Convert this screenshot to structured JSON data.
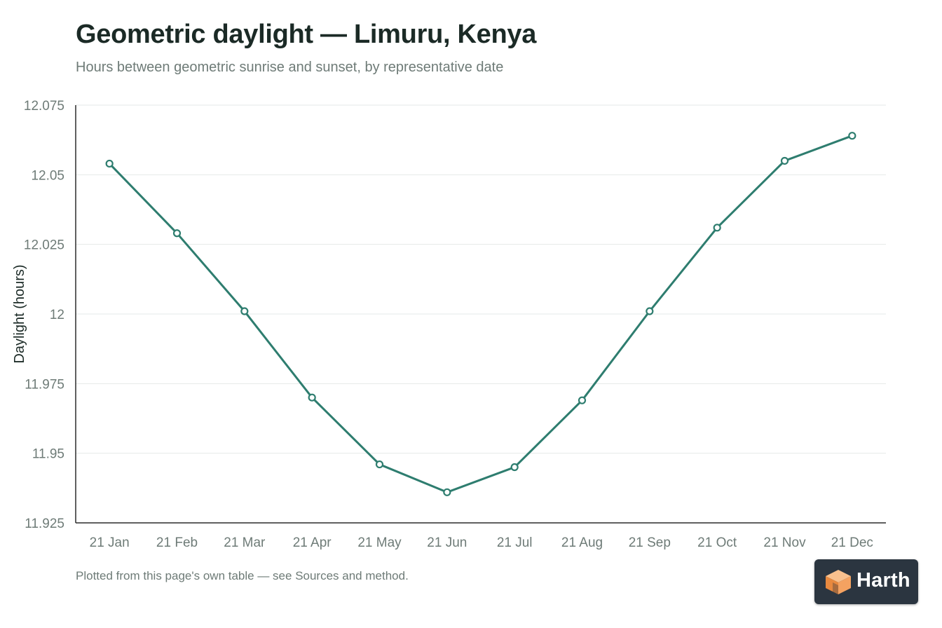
{
  "header": {
    "title": "Geometric daylight — Limuru, Kenya",
    "subtitle": "Hours between geometric sunrise and sunset, by representative date"
  },
  "footnote": "Plotted from this page's own table — see Sources and method.",
  "brand": {
    "name": "Harth",
    "icon": "cube-logo-icon",
    "accent": "#f4a261"
  },
  "chart_data": {
    "type": "line",
    "categories": [
      "21 Jan",
      "21 Feb",
      "21 Mar",
      "21 Apr",
      "21 May",
      "21 Jun",
      "21 Jul",
      "21 Aug",
      "21 Sep",
      "21 Oct",
      "21 Nov",
      "21 Dec"
    ],
    "series": [
      {
        "values": [
          12.054,
          12.029,
          12.001,
          11.97,
          11.946,
          11.936,
          11.945,
          11.969,
          12.001,
          12.031,
          12.055,
          12.064
        ],
        "color": "#2e7d6f"
      }
    ],
    "ylabel": "Daylight (hours)",
    "xlabel": "",
    "ylim": [
      11.925,
      12.075
    ],
    "yticks": [
      "12.075",
      "12.05",
      "12.025",
      "12",
      "11.975",
      "11.95",
      "11.925"
    ],
    "grid": true,
    "legend": "none"
  }
}
